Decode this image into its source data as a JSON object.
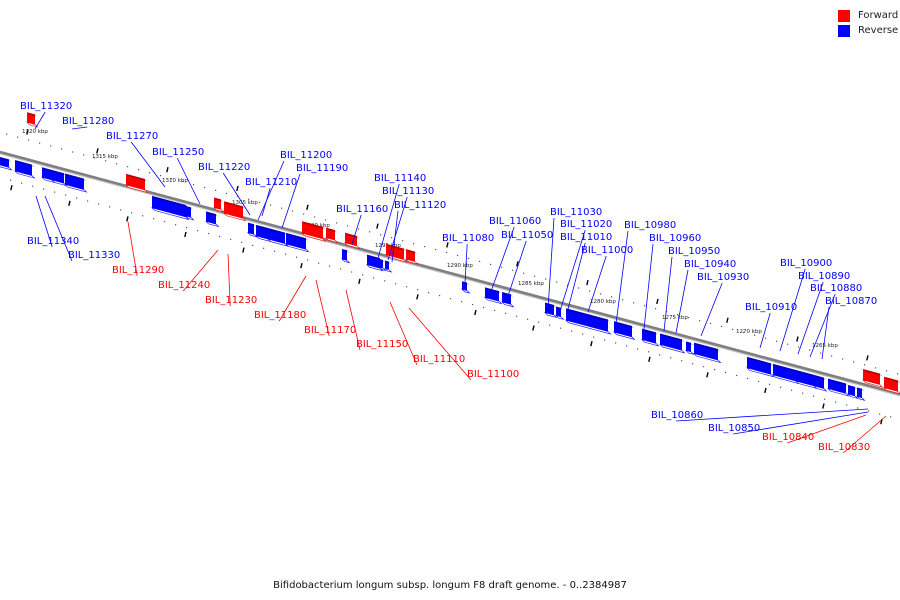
{
  "colors": {
    "forward": "#ff0000",
    "reverse": "#0000ff",
    "axis": "#7f7f7f"
  },
  "legend": {
    "forward": "Forward",
    "reverse": "Reverse"
  },
  "caption": "Bifidobacterium longum subsp. longum F8 draft genome. - 0..2384987",
  "kbp_labels": [
    "1320 kbp",
    "1315 kbp",
    "1310 kbp",
    "1305 kbp",
    "1300 kbp",
    "1295 kbp",
    "1290 kbp",
    "1285 kbp",
    "1280 kbp",
    "1275 kbp",
    "1270 kbp",
    "1265 kbp"
  ],
  "genes": [
    {
      "name": "BIL_11320",
      "strand": "reverse"
    },
    {
      "name": "BIL_11280",
      "strand": "reverse"
    },
    {
      "name": "BIL_11270",
      "strand": "reverse"
    },
    {
      "name": "BIL_11250",
      "strand": "reverse"
    },
    {
      "name": "BIL_11220",
      "strand": "reverse"
    },
    {
      "name": "BIL_11200",
      "strand": "reverse"
    },
    {
      "name": "BIL_11190",
      "strand": "reverse"
    },
    {
      "name": "BIL_11210",
      "strand": "reverse"
    },
    {
      "name": "BIL_11160",
      "strand": "reverse"
    },
    {
      "name": "BIL_11140",
      "strand": "reverse"
    },
    {
      "name": "BIL_11130",
      "strand": "reverse"
    },
    {
      "name": "BIL_11120",
      "strand": "reverse"
    },
    {
      "name": "BIL_11080",
      "strand": "reverse"
    },
    {
      "name": "BIL_11060",
      "strand": "reverse"
    },
    {
      "name": "BIL_11050",
      "strand": "reverse"
    },
    {
      "name": "BIL_11030",
      "strand": "reverse"
    },
    {
      "name": "BIL_11020",
      "strand": "reverse"
    },
    {
      "name": "BIL_11010",
      "strand": "reverse"
    },
    {
      "name": "BIL_11000",
      "strand": "reverse"
    },
    {
      "name": "BIL_10980",
      "strand": "reverse"
    },
    {
      "name": "BIL_10960",
      "strand": "reverse"
    },
    {
      "name": "BIL_10950",
      "strand": "reverse"
    },
    {
      "name": "BIL_10940",
      "strand": "reverse"
    },
    {
      "name": "BIL_10930",
      "strand": "reverse"
    },
    {
      "name": "BIL_10910",
      "strand": "reverse"
    },
    {
      "name": "BIL_10900",
      "strand": "reverse"
    },
    {
      "name": "BIL_10890",
      "strand": "reverse"
    },
    {
      "name": "BIL_10880",
      "strand": "reverse"
    },
    {
      "name": "BIL_10870",
      "strand": "reverse"
    },
    {
      "name": "BIL_11340",
      "strand": "reverse"
    },
    {
      "name": "BIL_11330",
      "strand": "reverse"
    },
    {
      "name": "BIL_10860",
      "strand": "reverse"
    },
    {
      "name": "BIL_10850",
      "strand": "reverse"
    },
    {
      "name": "BIL_11290",
      "strand": "forward"
    },
    {
      "name": "BIL_11240",
      "strand": "forward"
    },
    {
      "name": "BIL_11230",
      "strand": "forward"
    },
    {
      "name": "BIL_11180",
      "strand": "forward"
    },
    {
      "name": "BIL_11170",
      "strand": "forward"
    },
    {
      "name": "BIL_11150",
      "strand": "forward"
    },
    {
      "name": "BIL_11110",
      "strand": "forward"
    },
    {
      "name": "BIL_11100",
      "strand": "forward"
    },
    {
      "name": "BIL_10840",
      "strand": "forward"
    },
    {
      "name": "BIL_10830",
      "strand": "forward"
    }
  ]
}
